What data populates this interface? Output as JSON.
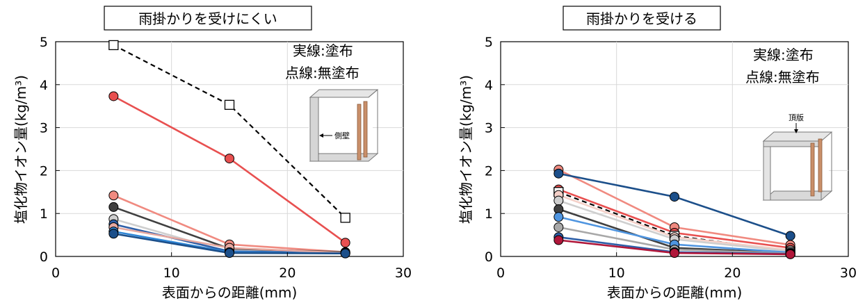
{
  "chart_data": [
    {
      "type": "line",
      "title": "雨掛かりを受けにくい",
      "xlabel": "表面からの距離(mm)",
      "ylabel": "塩化物イオン量(kg/m³)",
      "xlim": [
        0,
        30
      ],
      "ylim": [
        0,
        5
      ],
      "xticks": [
        0,
        10,
        20,
        30
      ],
      "yticks": [
        0,
        1,
        2,
        3,
        4,
        5
      ],
      "grid": true,
      "legend_text": [
        "実線:塗布",
        "点線:無塗布"
      ],
      "inset_label": "側壁",
      "x": [
        5,
        15,
        25
      ],
      "series": [
        {
          "values": [
            4.92,
            3.53,
            0.9
          ],
          "color": "#000000",
          "style": "dashed",
          "marker": "square"
        },
        {
          "values": [
            3.73,
            2.28,
            0.32
          ],
          "color": "#e85050",
          "style": "solid",
          "marker": "circle"
        },
        {
          "values": [
            1.42,
            0.28,
            0.1
          ],
          "color": "#f08a80",
          "style": "solid",
          "marker": "circle"
        },
        {
          "values": [
            1.15,
            0.18,
            0.1
          ],
          "color": "#404040",
          "style": "solid",
          "marker": "circle"
        },
        {
          "values": [
            0.87,
            0.1,
            0.08
          ],
          "color": "#cfcfcf",
          "style": "solid",
          "marker": "circle"
        },
        {
          "values": [
            0.75,
            0.12,
            0.08
          ],
          "color": "#2e5fa8",
          "style": "solid",
          "marker": "circle"
        },
        {
          "values": [
            0.68,
            0.2,
            0.08
          ],
          "color": "#e6a8a0",
          "style": "solid",
          "marker": "circle"
        },
        {
          "values": [
            0.58,
            0.1,
            0.07
          ],
          "color": "#2f86d6",
          "style": "solid",
          "marker": "circle"
        },
        {
          "values": [
            0.53,
            0.08,
            0.07
          ],
          "color": "#1c4f8a",
          "style": "solid",
          "marker": "circle"
        }
      ]
    },
    {
      "type": "line",
      "title": "雨掛かりを受ける",
      "xlabel": "表面からの距離(mm)",
      "ylabel": "塩化物イオン量(kg/m³)",
      "xlim": [
        0,
        30
      ],
      "ylim": [
        0,
        5
      ],
      "xticks": [
        0,
        10,
        20,
        30
      ],
      "yticks": [
        0,
        1,
        2,
        3,
        4,
        5
      ],
      "grid": true,
      "legend_text": [
        "実線:塗布",
        "点線:無塗布"
      ],
      "inset_label": "頂版",
      "x": [
        5,
        15,
        25
      ],
      "series": [
        {
          "values": [
            2.02,
            0.68,
            0.27
          ],
          "color": "#f08a80",
          "style": "solid",
          "marker": "circle"
        },
        {
          "values": [
            1.93,
            1.39,
            0.48
          ],
          "color": "#1c4f8a",
          "style": "solid",
          "marker": "circle"
        },
        {
          "values": [
            1.56,
            0.55,
            0.2
          ],
          "color": "#e85050",
          "style": "solid",
          "marker": "circle"
        },
        {
          "values": [
            1.5,
            0.48,
            0.12
          ],
          "color": "#000000",
          "style": "dashed",
          "marker": "square"
        },
        {
          "values": [
            1.43,
            0.45,
            0.15
          ],
          "color": "#f4d0c8",
          "style": "solid",
          "marker": "circle"
        },
        {
          "values": [
            1.3,
            0.4,
            0.12
          ],
          "color": "#cfcfcf",
          "style": "solid",
          "marker": "circle"
        },
        {
          "values": [
            1.1,
            0.2,
            0.08
          ],
          "color": "#404040",
          "style": "solid",
          "marker": "circle"
        },
        {
          "values": [
            0.92,
            0.28,
            0.09
          ],
          "color": "#4f95e0",
          "style": "solid",
          "marker": "circle"
        },
        {
          "values": [
            0.68,
            0.16,
            0.07
          ],
          "color": "#a8a8a8",
          "style": "solid",
          "marker": "circle"
        },
        {
          "values": [
            0.45,
            0.1,
            0.06
          ],
          "color": "#2e5fa8",
          "style": "solid",
          "marker": "circle"
        },
        {
          "values": [
            0.38,
            0.08,
            0.05
          ],
          "color": "#b0173a",
          "style": "solid",
          "marker": "circle"
        }
      ]
    }
  ]
}
